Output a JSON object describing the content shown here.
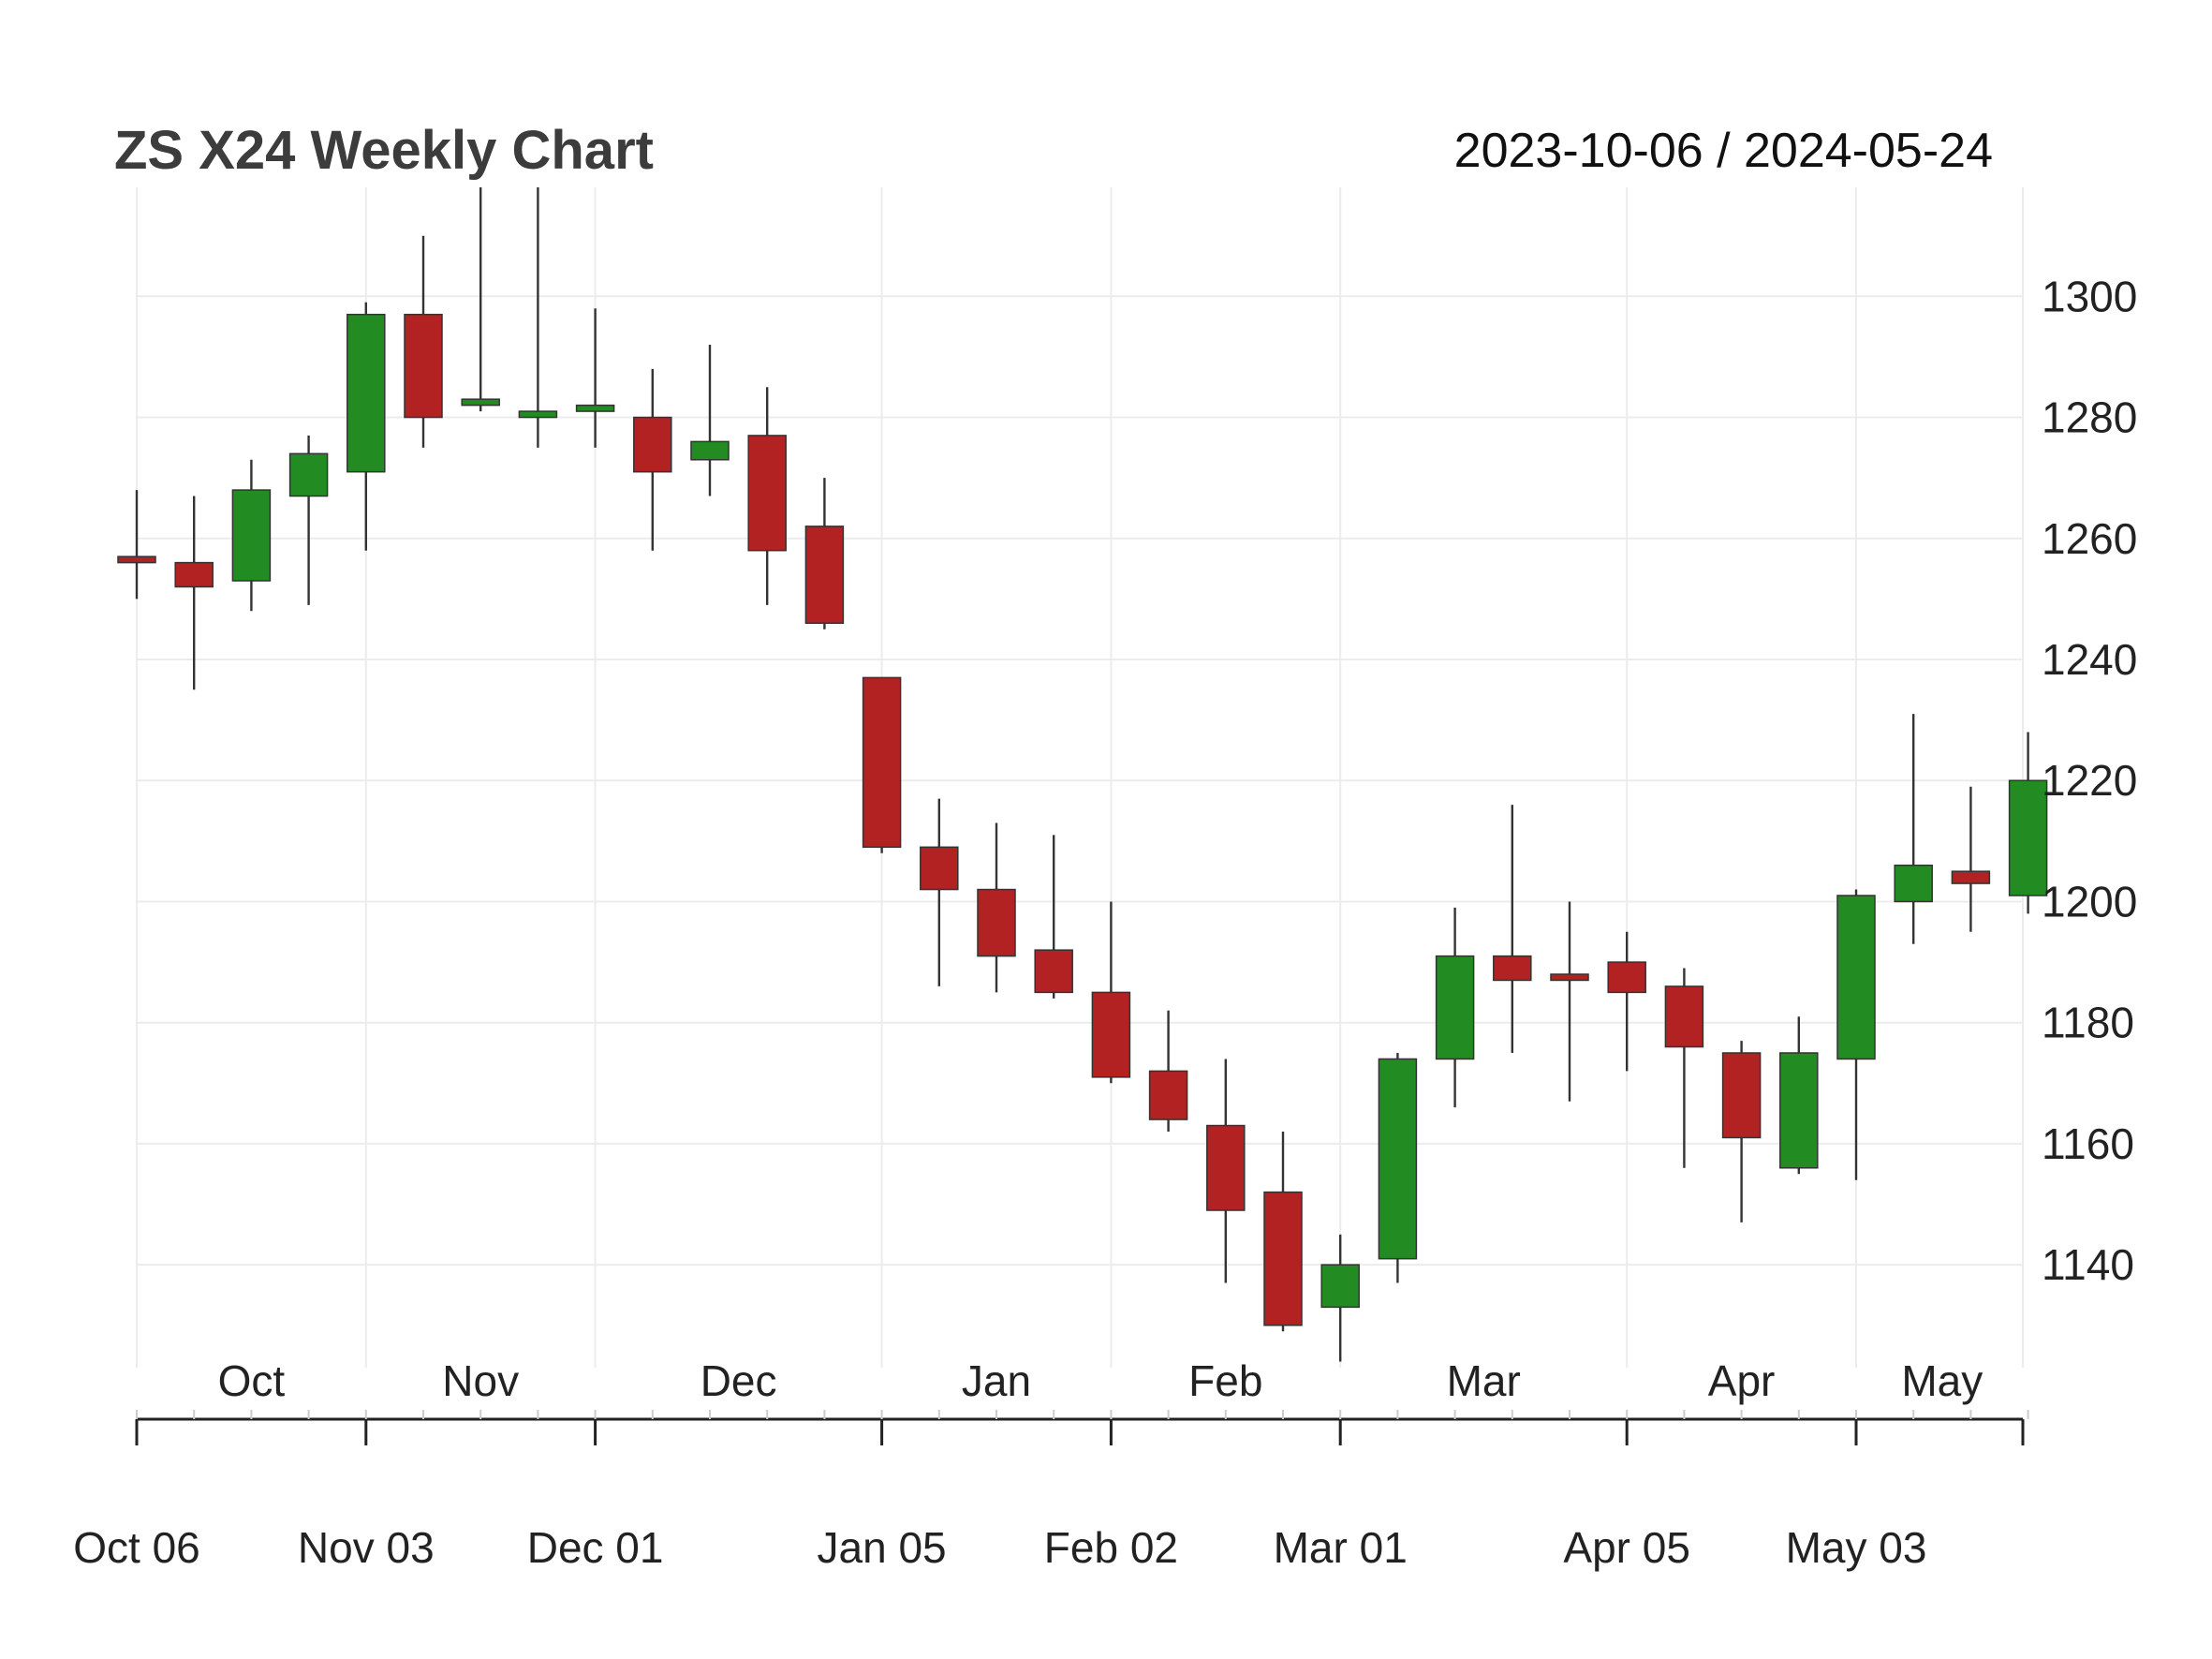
{
  "chart_data": {
    "type": "candlestick",
    "title": "ZS X24 Weekly Chart",
    "date_range": "2023-10-06 / 2024-05-24",
    "ylim": [
      1123,
      1318
    ],
    "yticks": [
      1140,
      1160,
      1180,
      1200,
      1220,
      1240,
      1260,
      1280,
      1300
    ],
    "month_labels": [
      {
        "label": "Oct",
        "at": 2
      },
      {
        "label": "Nov",
        "at": 6
      },
      {
        "label": "Dec",
        "at": 10.5
      },
      {
        "label": "Jan",
        "at": 15
      },
      {
        "label": "Feb",
        "at": 19
      },
      {
        "label": "Mar",
        "at": 23.5
      },
      {
        "label": "Apr",
        "at": 28
      },
      {
        "label": "May",
        "at": 31.5
      }
    ],
    "date_ticks": [
      {
        "label": "Oct 06",
        "index": 0
      },
      {
        "label": "Nov 03",
        "index": 4
      },
      {
        "label": "Dec 01",
        "index": 8
      },
      {
        "label": "Jan 05",
        "index": 13
      },
      {
        "label": "Feb 02",
        "index": 17
      },
      {
        "label": "Mar 01",
        "index": 21
      },
      {
        "label": "Apr 05",
        "index": 26
      },
      {
        "label": "May 03",
        "index": 30
      }
    ],
    "candles": [
      {
        "date": "2023-10-06",
        "open": 1257,
        "high": 1268,
        "low": 1250,
        "close": 1256
      },
      {
        "date": "2023-10-13",
        "open": 1256,
        "high": 1267,
        "low": 1235,
        "close": 1252
      },
      {
        "date": "2023-10-20",
        "open": 1253,
        "high": 1273,
        "low": 1248,
        "close": 1268
      },
      {
        "date": "2023-10-27",
        "open": 1267,
        "high": 1277,
        "low": 1249,
        "close": 1274
      },
      {
        "date": "2023-11-03",
        "open": 1271,
        "high": 1299,
        "low": 1258,
        "close": 1297
      },
      {
        "date": "2023-11-10",
        "open": 1297,
        "high": 1310,
        "low": 1275,
        "close": 1280
      },
      {
        "date": "2023-11-17",
        "open": 1282,
        "high": 1318,
        "low": 1281,
        "close": 1283
      },
      {
        "date": "2023-11-24",
        "open": 1280,
        "high": 1318,
        "low": 1275,
        "close": 1281
      },
      {
        "date": "2023-12-01",
        "open": 1281,
        "high": 1298,
        "low": 1275,
        "close": 1282
      },
      {
        "date": "2023-12-08",
        "open": 1280,
        "high": 1288,
        "low": 1258,
        "close": 1271
      },
      {
        "date": "2023-12-15",
        "open": 1273,
        "high": 1292,
        "low": 1267,
        "close": 1276
      },
      {
        "date": "2023-12-22",
        "open": 1277,
        "high": 1285,
        "low": 1249,
        "close": 1258
      },
      {
        "date": "2023-12-29",
        "open": 1262,
        "high": 1270,
        "low": 1245,
        "close": 1246
      },
      {
        "date": "2024-01-05",
        "open": 1237,
        "high": 1237,
        "low": 1208,
        "close": 1209
      },
      {
        "date": "2024-01-12",
        "open": 1209,
        "high": 1217,
        "low": 1186,
        "close": 1202
      },
      {
        "date": "2024-01-19",
        "open": 1202,
        "high": 1213,
        "low": 1185,
        "close": 1191
      },
      {
        "date": "2024-01-26",
        "open": 1192,
        "high": 1211,
        "low": 1184,
        "close": 1185
      },
      {
        "date": "2024-02-02",
        "open": 1185,
        "high": 1200,
        "low": 1170,
        "close": 1171
      },
      {
        "date": "2024-02-09",
        "open": 1172,
        "high": 1182,
        "low": 1162,
        "close": 1164
      },
      {
        "date": "2024-02-16",
        "open": 1163,
        "high": 1174,
        "low": 1137,
        "close": 1149
      },
      {
        "date": "2024-02-23",
        "open": 1152,
        "high": 1162,
        "low": 1129,
        "close": 1130
      },
      {
        "date": "2024-03-01",
        "open": 1133,
        "high": 1145,
        "low": 1124,
        "close": 1140
      },
      {
        "date": "2024-03-08",
        "open": 1141,
        "high": 1175,
        "low": 1137,
        "close": 1174
      },
      {
        "date": "2024-03-15",
        "open": 1174,
        "high": 1199,
        "low": 1166,
        "close": 1191
      },
      {
        "date": "2024-03-22",
        "open": 1191,
        "high": 1216,
        "low": 1175,
        "close": 1187
      },
      {
        "date": "2024-03-29",
        "open": 1188,
        "high": 1200,
        "low": 1167,
        "close": 1187
      },
      {
        "date": "2024-04-05",
        "open": 1190,
        "high": 1195,
        "low": 1172,
        "close": 1185
      },
      {
        "date": "2024-04-12",
        "open": 1186,
        "high": 1189,
        "low": 1156,
        "close": 1176
      },
      {
        "date": "2024-04-19",
        "open": 1175,
        "high": 1177,
        "low": 1147,
        "close": 1161
      },
      {
        "date": "2024-04-26",
        "open": 1156,
        "high": 1181,
        "low": 1155,
        "close": 1175
      },
      {
        "date": "2024-05-03",
        "open": 1174,
        "high": 1202,
        "low": 1154,
        "close": 1201
      },
      {
        "date": "2024-05-10",
        "open": 1200,
        "high": 1231,
        "low": 1193,
        "close": 1206
      },
      {
        "date": "2024-05-17",
        "open": 1205,
        "high": 1219,
        "low": 1195,
        "close": 1203
      },
      {
        "date": "2024-05-24",
        "open": 1201,
        "high": 1228,
        "low": 1198,
        "close": 1220
      }
    ],
    "colors": {
      "up": "#228b22",
      "down": "#b22222",
      "wick": "#333333",
      "grid": "#ececec",
      "axis": "#222222"
    },
    "grid": true,
    "y_axis_position": "right"
  }
}
